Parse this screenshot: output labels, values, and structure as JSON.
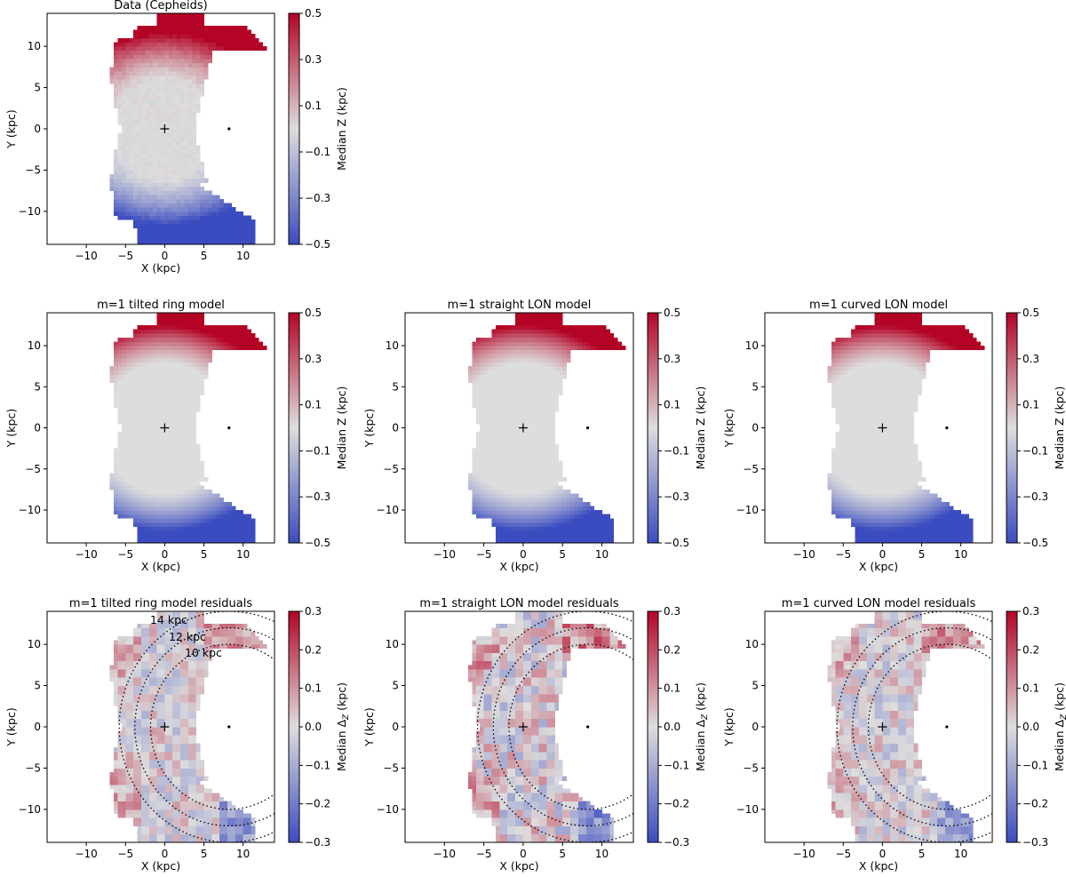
{
  "figure": {
    "description_free": true
  },
  "colorbars": {
    "median_z": {
      "label": "Median Z (kpc)",
      "range": [
        -0.5,
        0.5
      ],
      "ticks": [
        0.5,
        0.3,
        0.1,
        -0.1,
        -0.3,
        -0.5
      ],
      "tick_labels": [
        "0.5",
        "0.3",
        "0.1",
        "−0.1",
        "−0.3",
        "−0.5"
      ]
    },
    "residual": {
      "label": "Median Δ",
      "label_sub": "Z",
      "label_unit": " (kpc)",
      "range": [
        -0.3,
        0.3
      ],
      "ticks": [
        0.3,
        0.2,
        0.1,
        0.0,
        -0.1,
        -0.2,
        -0.3
      ],
      "tick_labels": [
        "0.3",
        "0.2",
        "0.1",
        "0.0",
        "−0.1",
        "−0.2",
        "−0.3"
      ]
    }
  },
  "colors": {
    "cmap_low": "#3b4cc0",
    "cmap_mid": "#dddddd",
    "cmap_high": "#b40426",
    "circle": "#000000"
  },
  "chart_data": [
    {
      "id": "data",
      "type": "heatmap",
      "title": "Data (Cepheids)",
      "xlabel": "X (kpc)",
      "ylabel": "Y (kpc)",
      "xlim": [
        -15,
        14
      ],
      "ylim": [
        -14,
        14
      ],
      "xticks": [
        -10,
        -5,
        0,
        5,
        10
      ],
      "xtick_labels": [
        "−10",
        "−5",
        "0",
        "5",
        "10"
      ],
      "yticks": [
        10,
        5,
        0,
        -5,
        -10
      ],
      "ytick_labels": [
        "10",
        "5",
        "0",
        "−5",
        "−10"
      ],
      "galactic_center": [
        0,
        0
      ],
      "sun": [
        8.2,
        0
      ],
      "colorbar": "median_z",
      "map": {
        "kind": "data",
        "amplitude": 0.5,
        "value_label": "Median Z (kpc)"
      }
    },
    {
      "id": "tilted",
      "type": "heatmap",
      "title": "m=1 tilted ring model",
      "xlabel": "X (kpc)",
      "ylabel": "Y (kpc)",
      "xlim": [
        -15,
        14
      ],
      "ylim": [
        -14,
        14
      ],
      "xticks": [
        -10,
        -5,
        0,
        5,
        10
      ],
      "xtick_labels": [
        "−10",
        "−5",
        "0",
        "5",
        "10"
      ],
      "yticks": [
        10,
        5,
        0,
        -5,
        -10
      ],
      "ytick_labels": [
        "10",
        "5",
        "0",
        "−5",
        "−10"
      ],
      "galactic_center": [
        0,
        0
      ],
      "sun": [
        8.2,
        0
      ],
      "colorbar": "median_z",
      "map": {
        "kind": "model",
        "amplitude": 0.5
      }
    },
    {
      "id": "straight",
      "type": "heatmap",
      "title": "m=1 straight LON model",
      "xlabel": "X (kpc)",
      "ylabel": "Y (kpc)",
      "xlim": [
        -15,
        14
      ],
      "ylim": [
        -14,
        14
      ],
      "xticks": [
        -10,
        -5,
        0,
        5,
        10
      ],
      "xtick_labels": [
        "−10",
        "−5",
        "0",
        "5",
        "10"
      ],
      "yticks": [
        10,
        5,
        0,
        -5,
        -10
      ],
      "ytick_labels": [
        "10",
        "5",
        "0",
        "−5",
        "−10"
      ],
      "galactic_center": [
        0,
        0
      ],
      "sun": [
        8.2,
        0
      ],
      "colorbar": "median_z",
      "map": {
        "kind": "model",
        "amplitude": 0.5
      }
    },
    {
      "id": "curved",
      "type": "heatmap",
      "title": "m=1 curved LON model",
      "xlabel": "X (kpc)",
      "ylabel": "Y (kpc)",
      "xlim": [
        -15,
        14
      ],
      "ylim": [
        -14,
        14
      ],
      "xticks": [
        -10,
        -5,
        0,
        5,
        10
      ],
      "xtick_labels": [
        "−10",
        "−5",
        "0",
        "5",
        "10"
      ],
      "yticks": [
        10,
        5,
        0,
        -5,
        -10
      ],
      "ytick_labels": [
        "10",
        "5",
        "0",
        "−5",
        "−10"
      ],
      "galactic_center": [
        0,
        0
      ],
      "sun": [
        8.2,
        0
      ],
      "colorbar": "median_z",
      "map": {
        "kind": "model",
        "amplitude": 0.5
      }
    },
    {
      "id": "tilted_res",
      "type": "heatmap",
      "title": "m=1 tilted ring model residuals",
      "xlabel": "X (kpc)",
      "ylabel": "Y (kpc)",
      "xlim": [
        -15,
        14
      ],
      "ylim": [
        -14,
        14
      ],
      "xticks": [
        -10,
        -5,
        0,
        5,
        10
      ],
      "xtick_labels": [
        "−10",
        "−5",
        "0",
        "5",
        "10"
      ],
      "yticks": [
        10,
        5,
        0,
        -5,
        -10
      ],
      "ytick_labels": [
        "10",
        "5",
        "0",
        "−5",
        "−10"
      ],
      "galactic_center": [
        0,
        0
      ],
      "sun": [
        8.2,
        0
      ],
      "colorbar": "residual",
      "map": {
        "kind": "residual",
        "amplitude": 0.2
      },
      "circles": [
        {
          "radius_kpc": 14,
          "label": "14 kpc"
        },
        {
          "radius_kpc": 12,
          "label": "12 kpc"
        },
        {
          "radius_kpc": 10,
          "label": "10 kpc"
        }
      ],
      "circle_labels_shown": true
    },
    {
      "id": "straight_res",
      "type": "heatmap",
      "title": "m=1 straight LON model residuals",
      "xlabel": "X (kpc)",
      "ylabel": "Y (kpc)",
      "xlim": [
        -15,
        14
      ],
      "ylim": [
        -14,
        14
      ],
      "xticks": [
        -10,
        -5,
        0,
        5,
        10
      ],
      "xtick_labels": [
        "−10",
        "−5",
        "0",
        "5",
        "10"
      ],
      "yticks": [
        10,
        5,
        0,
        -5,
        -10
      ],
      "ytick_labels": [
        "10",
        "5",
        "0",
        "−5",
        "−10"
      ],
      "galactic_center": [
        0,
        0
      ],
      "sun": [
        8.2,
        0
      ],
      "colorbar": "residual",
      "map": {
        "kind": "residual",
        "amplitude": 0.25
      },
      "circles": [
        {
          "radius_kpc": 14
        },
        {
          "radius_kpc": 12
        },
        {
          "radius_kpc": 10
        }
      ],
      "circle_labels_shown": false
    },
    {
      "id": "curved_res",
      "type": "heatmap",
      "title": "m=1 curved LON model residuals",
      "xlabel": "X (kpc)",
      "ylabel": "Y (kpc)",
      "xlim": [
        -15,
        14
      ],
      "ylim": [
        -14,
        14
      ],
      "xticks": [
        -10,
        -5,
        0,
        5,
        10
      ],
      "xtick_labels": [
        "−10",
        "−5",
        "0",
        "5",
        "10"
      ],
      "yticks": [
        10,
        5,
        0,
        -5,
        -10
      ],
      "ytick_labels": [
        "10",
        "5",
        "0",
        "−5",
        "−10"
      ],
      "galactic_center": [
        0,
        0
      ],
      "sun": [
        8.2,
        0
      ],
      "colorbar": "residual",
      "map": {
        "kind": "residual",
        "amplitude": 0.2
      },
      "circles": [
        {
          "radius_kpc": 14
        },
        {
          "radius_kpc": 12
        },
        {
          "radius_kpc": 10
        }
      ],
      "circle_labels_shown": false
    }
  ]
}
